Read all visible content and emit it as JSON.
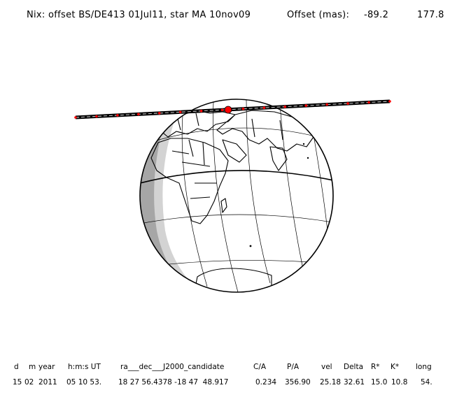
{
  "header": {
    "title": "Nix: offset BS/DE413 01Jul11, star MA 10nov09",
    "offset_label": "Offset (mas):",
    "offset_values": [
      "-89.2",
      "177.8"
    ]
  },
  "table": {
    "columns": [
      "d",
      "m",
      "year",
      "h:m:s UT",
      "ra___dec___J2000_candidate",
      "C/A",
      "P/A",
      "vel",
      "Delta",
      "R*",
      "K*",
      "long"
    ],
    "values": [
      "15",
      "02",
      "2011",
      "05 10 53.",
      "18 27 56.4378 -18 47  48.917",
      "0.234",
      "356.90",
      "25.18",
      "32.61",
      "15.0",
      "10.8",
      "54."
    ]
  },
  "colors": {
    "night": "#a6a6a6",
    "twilight": "#d3d3d3",
    "track": "#000000",
    "track_dots": "#ff0000",
    "closest_approach": "#ff0000"
  }
}
